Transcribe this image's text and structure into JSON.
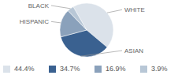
{
  "chart_data": {
    "type": "pie",
    "categories": [
      "WHITE",
      "ASIAN",
      "HISPANIC",
      "BLACK"
    ],
    "values": [
      44.4,
      34.7,
      16.9,
      3.9
    ],
    "value_labels": [
      "44.4%",
      "34.7%",
      "16.9%",
      "3.9%"
    ],
    "colors": [
      "#dbe2ea",
      "#3a6190",
      "#8aa1bb",
      "#b8c7d6"
    ],
    "legend": "bottom"
  }
}
